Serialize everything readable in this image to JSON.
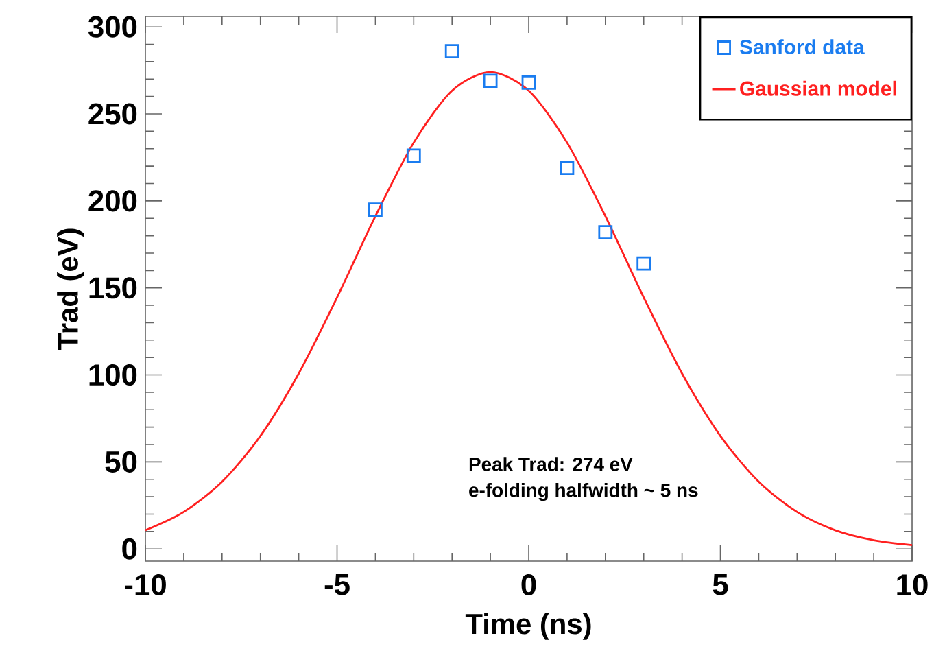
{
  "chart_data": {
    "type": "scatter",
    "xlabel": "Time (ns)",
    "ylabel": "Trad (eV)",
    "xlim": [
      -10,
      10
    ],
    "ylim": [
      -7,
      306
    ],
    "xticks": [
      -10,
      -5,
      0,
      5,
      10
    ],
    "yticks": [
      0,
      50,
      100,
      150,
      200,
      250,
      300
    ],
    "legend": "top right",
    "grid": false,
    "annotations": [
      "Peak Trad: 274 eV",
      "e-folding halfwidth ~ 5 ns"
    ],
    "series": [
      {
        "name": "Sanford data",
        "marker": "square",
        "color": "#1a7cf0",
        "x": [
          -4,
          -3,
          -2,
          -1,
          0,
          1,
          2,
          3
        ],
        "values": [
          195,
          226,
          286,
          269,
          268,
          219,
          182,
          164
        ]
      },
      {
        "name": "Gaussian model",
        "type": "line",
        "marker": "none",
        "line_style": "solid",
        "color": "#ff2020",
        "x": [
          -10,
          -9,
          -8,
          -7,
          -6,
          -5,
          -4,
          -3,
          -2,
          -1,
          0,
          1,
          2,
          3,
          4,
          5,
          6,
          7,
          8,
          9,
          10
        ],
        "values": [
          10.7,
          21.2,
          38.6,
          64.9,
          100.8,
          144.5,
          191.2,
          233.5,
          263.3,
          274,
          263.3,
          233.5,
          191.2,
          144.5,
          100.8,
          64.9,
          38.6,
          21.2,
          10.7,
          5.0,
          2.2
        ]
      }
    ]
  }
}
